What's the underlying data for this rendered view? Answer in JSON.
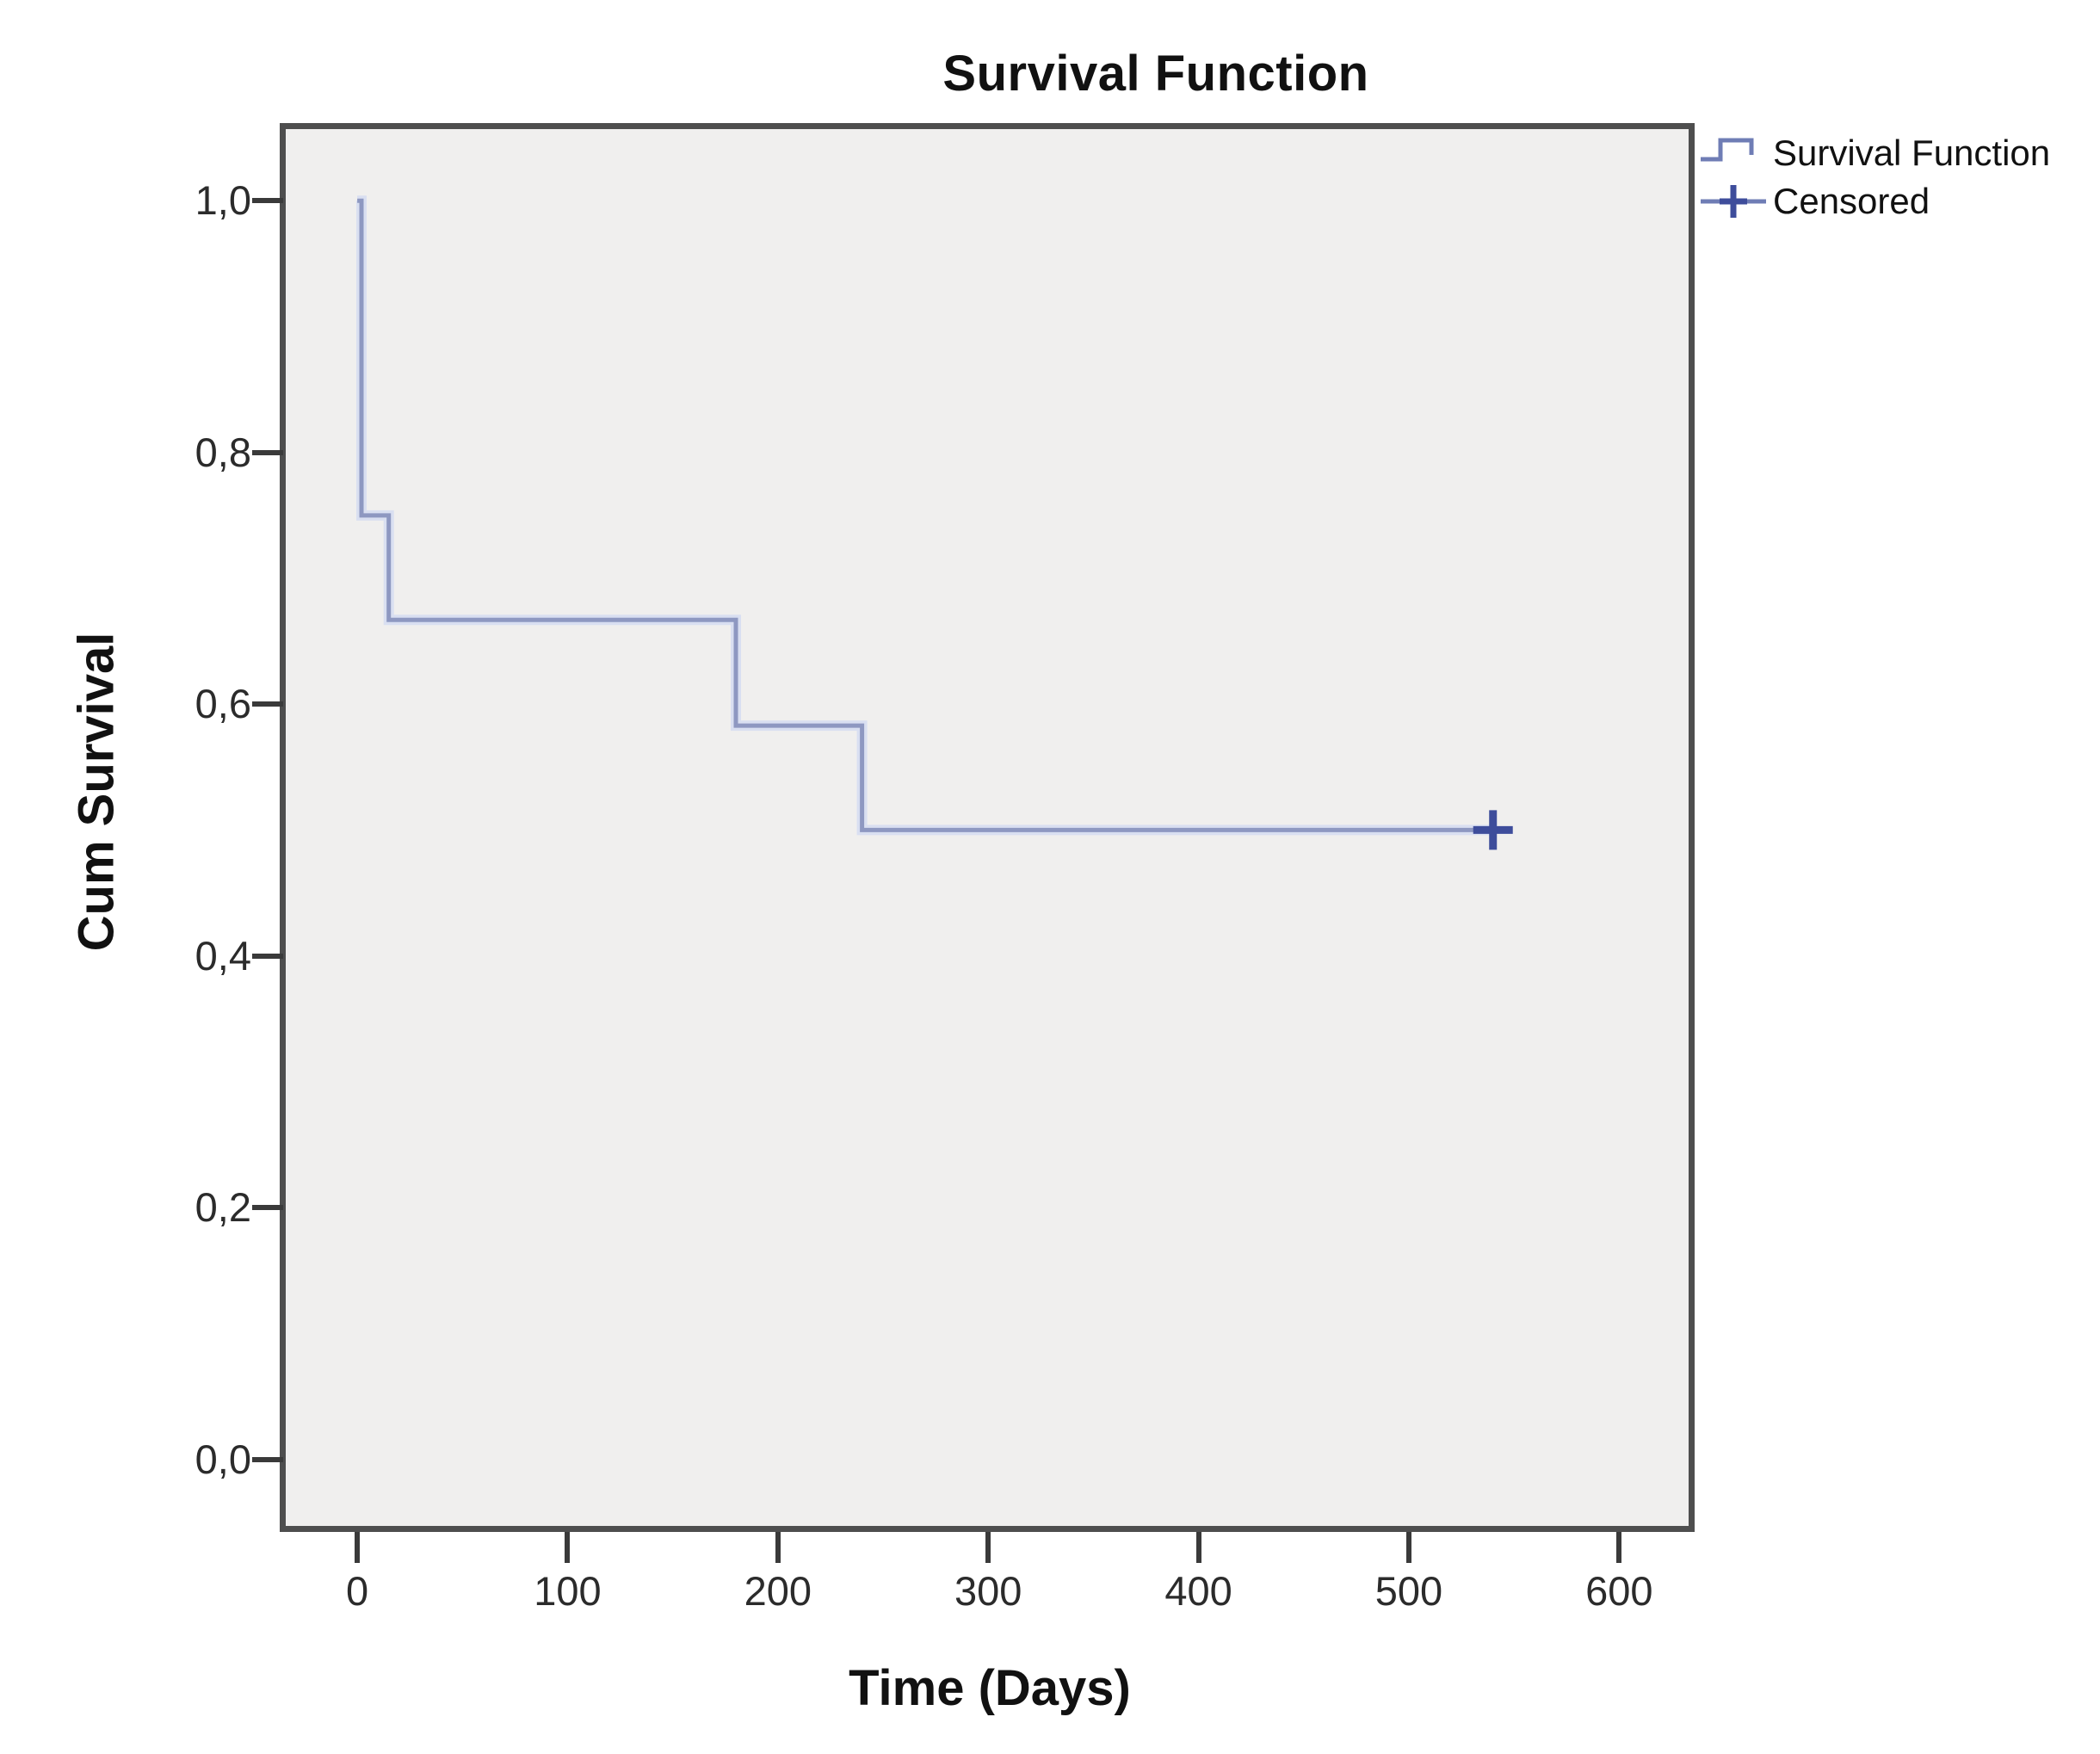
{
  "chart_data": {
    "type": "line",
    "subtype": "kaplan-meier-step-function",
    "title": "Survival Function",
    "xlabel": "Time (Days)",
    "ylabel": "Cum Survival",
    "xlim": [
      -34,
      633
    ],
    "ylim": [
      -0.053,
      1.057
    ],
    "grid": false,
    "plot_background": "#f0efee",
    "legend_position": "top-right-outside",
    "x_ticks": {
      "values": [
        0,
        100,
        200,
        300,
        400,
        500,
        600
      ],
      "labels": [
        "0",
        "100",
        "200",
        "300",
        "400",
        "500",
        "600"
      ]
    },
    "y_ticks": {
      "values": [
        0.0,
        0.2,
        0.4,
        0.6,
        0.8,
        1.0
      ],
      "labels": [
        "0,0",
        "0,2",
        "0,4",
        "0,6",
        "0,8",
        "1,0"
      ]
    },
    "series": [
      {
        "name": "Survival Function",
        "type": "step",
        "color": "#8e98c1",
        "halo_color": "#d9dff1",
        "points": [
          [
            0,
            1.0
          ],
          [
            2,
            1.0
          ],
          [
            2,
            0.75
          ],
          [
            15,
            0.75
          ],
          [
            15,
            0.667
          ],
          [
            180,
            0.667
          ],
          [
            180,
            0.583
          ],
          [
            240,
            0.583
          ],
          [
            240,
            0.5
          ],
          [
            540,
            0.5
          ]
        ]
      },
      {
        "name": "Censored",
        "type": "marker-plus",
        "color": "#3e4d9b",
        "points": [
          [
            540,
            0.5
          ]
        ]
      }
    ]
  },
  "legend": {
    "items": [
      {
        "label": "Survival Function",
        "symbol": "step-line"
      },
      {
        "label": "Censored",
        "symbol": "plus-line"
      }
    ]
  },
  "colors": {
    "axis_border": "#4e4e4e",
    "tick": "#3a3a3a",
    "title_text": "#111111",
    "legend_symbol": "#6f7db5",
    "censor_plus": "#3e4d9b"
  }
}
